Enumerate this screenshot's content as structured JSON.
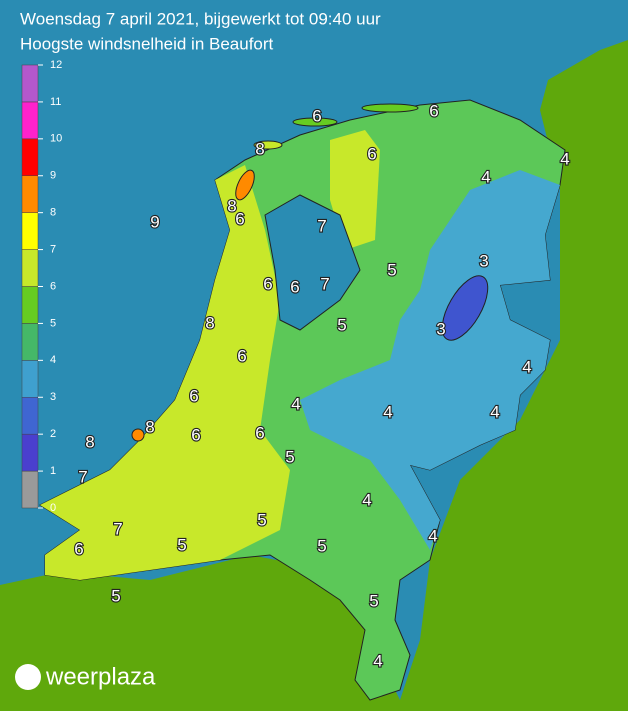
{
  "header": {
    "title": "Woensdag 7 april 2021, bijgewerkt tot 09:40 uur",
    "subtitle": "Hoogste windsnelheid in Beaufort"
  },
  "legend": {
    "ticks": [
      0,
      1,
      2,
      3,
      4,
      5,
      6,
      7,
      8,
      9,
      10,
      11,
      12
    ],
    "colors": [
      "#9a9a9a",
      "#4a3fcf",
      "#3f66d2",
      "#3fa0cf",
      "#45b868",
      "#66cc22",
      "#c8e82a",
      "#ffff00",
      "#ff8a00",
      "#ff0000",
      "#ff22cc",
      "#b458cc"
    ]
  },
  "map_labels": [
    6,
    6,
    8,
    6,
    4,
    4,
    8,
    6,
    9,
    7,
    5,
    3,
    6,
    6,
    7,
    5,
    8,
    3,
    6,
    4,
    6,
    4,
    4,
    4,
    8,
    6,
    6,
    8,
    5,
    7,
    4,
    7,
    5,
    4,
    6,
    5,
    5,
    5,
    5,
    4
  ],
  "logo": "weerplaza"
}
